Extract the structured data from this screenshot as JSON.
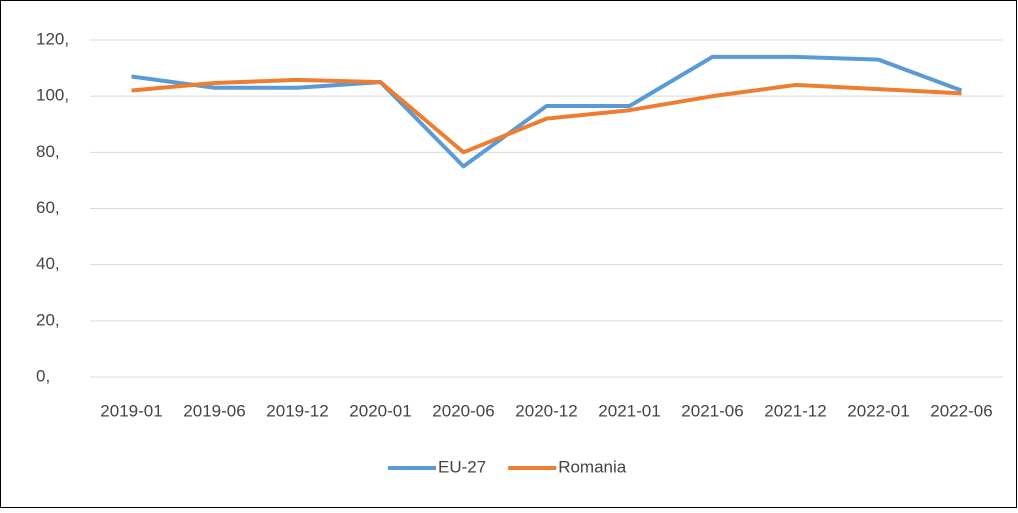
{
  "chart_data": {
    "type": "line",
    "categories": [
      "2019-01",
      "2019-06",
      "2019-12",
      "2020-01",
      "2020-06",
      "2020-12",
      "2021-01",
      "2021-06",
      "2021-12",
      "2022-01",
      "2022-06"
    ],
    "series": [
      {
        "name": "EU-27",
        "color": "#5b9bd5",
        "values": [
          107,
          103,
          103,
          105,
          75,
          96.5,
          96.5,
          114,
          114,
          113,
          102
        ]
      },
      {
        "name": "Romania",
        "color": "#ed7d31",
        "values": [
          102,
          104.7,
          105.8,
          105,
          80,
          92,
          95,
          100,
          104,
          102.5,
          101
        ]
      }
    ],
    "ylim": [
      0,
      120
    ],
    "yticks": [
      {
        "value": 0,
        "label": "0,"
      },
      {
        "value": 20,
        "label": "20,"
      },
      {
        "value": 40,
        "label": "40,"
      },
      {
        "value": 60,
        "label": "60,"
      },
      {
        "value": 80,
        "label": "80,"
      },
      {
        "value": 100,
        "label": "100,"
      },
      {
        "value": 120,
        "label": "120,"
      }
    ],
    "grid": true,
    "legend": "bottom"
  }
}
